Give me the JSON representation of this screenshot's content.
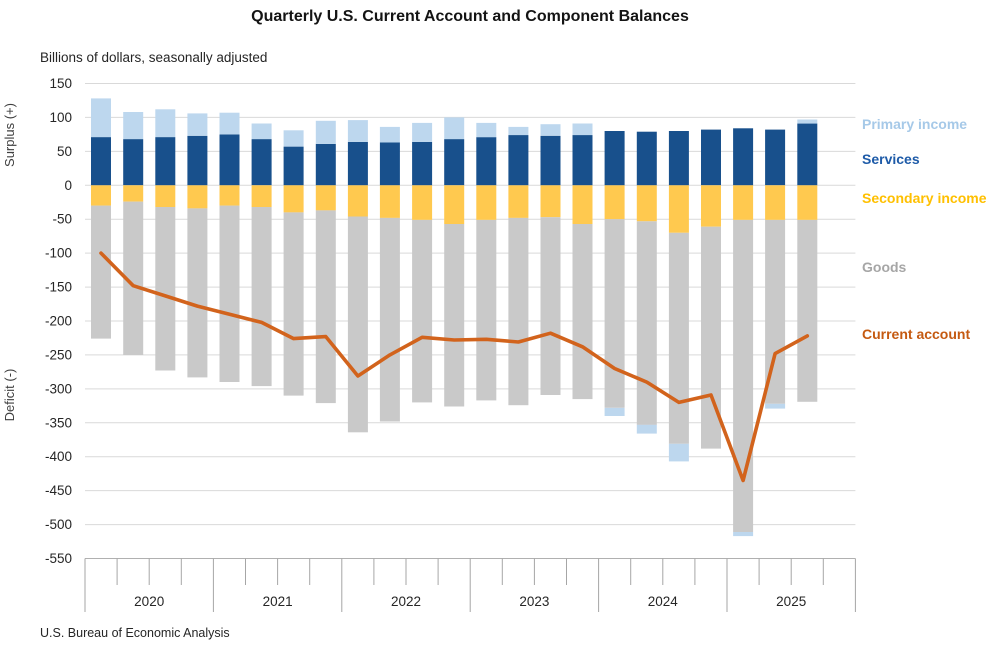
{
  "header": {
    "title": "Quarterly U.S. Current Account and Component Balances",
    "subtitle": "Billions of dollars, seasonally adjusted",
    "source": "U.S. Bureau of Economic Analysis"
  },
  "legend": [
    {
      "label": "Primary income",
      "color": "#A6C9E8",
      "y": 124
    },
    {
      "label": "Services",
      "color": "#1E5BA8",
      "y": 159
    },
    {
      "label": "Secondary income",
      "color": "#FFC000",
      "y": 198
    },
    {
      "label": "Goods",
      "color": "#A6A6A6",
      "y": 267
    },
    {
      "label": "Current account",
      "color": "#C55A11",
      "y": 334
    }
  ],
  "chart_data": {
    "type": "bar",
    "subtype": "stacked-bars-with-line",
    "title": "Quarterly U.S. Current Account and Component Balances",
    "ylabel_units": "Billions of dollars, seasonally adjusted",
    "y_axis": {
      "max": 150,
      "min": -550,
      "step": 50,
      "surplus_label": "Surplus (+)",
      "deficit_label": "Deficit (-)",
      "grid": true
    },
    "x_axis": {
      "years": [
        "2020",
        "2021",
        "2022",
        "2023",
        "2024",
        "2025"
      ],
      "quarters_per_year": 4,
      "n_points": 23
    },
    "quarters": [
      "2020 Q1",
      "2020 Q2",
      "2020 Q3",
      "2020 Q4",
      "2021 Q1",
      "2021 Q2",
      "2021 Q3",
      "2021 Q4",
      "2022 Q1",
      "2022 Q2",
      "2022 Q3",
      "2022 Q4",
      "2023 Q1",
      "2023 Q2",
      "2023 Q3",
      "2023 Q4",
      "2024 Q1",
      "2024 Q2",
      "2024 Q3",
      "2024 Q4",
      "2025 Q1",
      "2025 Q2",
      "2025 Q3"
    ],
    "series": {
      "services": {
        "name": "Services",
        "color": "#18508C",
        "role": "bar",
        "values": [
          71,
          68,
          71,
          73,
          75,
          68,
          57,
          61,
          64,
          63,
          64,
          68,
          71,
          74,
          73,
          74,
          80,
          79,
          80,
          82,
          84,
          82,
          91
        ]
      },
      "primary_income": {
        "name": "Primary income",
        "color": "#BDD7EE",
        "role": "bar",
        "values": [
          57,
          40,
          41,
          33,
          32,
          23,
          24,
          34,
          32,
          23,
          28,
          32,
          21,
          12,
          17,
          17,
          -12,
          -13,
          -26,
          0,
          -6,
          -7,
          6
        ]
      },
      "secondary_income": {
        "name": "Secondary income",
        "color": "#FFC94F",
        "role": "bar",
        "values": [
          -30,
          -24,
          -32,
          -34,
          -30,
          -32,
          -40,
          -37,
          -46,
          -48,
          -51,
          -57,
          -51,
          -48,
          -47,
          -57,
          -50,
          -53,
          -70,
          -61,
          -51,
          -51,
          -51
        ]
      },
      "goods": {
        "name": "Goods",
        "color": "#C9C9C9",
        "role": "bar",
        "values": [
          -196,
          -226,
          -241,
          -249,
          -260,
          -264,
          -270,
          -284,
          -318,
          -300,
          -269,
          -269,
          -266,
          -276,
          -262,
          -258,
          -278,
          -300,
          -311,
          -327,
          -460,
          -271,
          -268
        ]
      },
      "current_account": {
        "name": "Current account",
        "color": "#D2631C",
        "role": "line",
        "values": [
          -100,
          -148,
          -163,
          -178,
          -190,
          -202,
          -226,
          -223,
          -281,
          -250,
          -224,
          -228,
          -227,
          -231,
          -218,
          -238,
          -270,
          -290,
          -320,
          -309,
          -435,
          -248,
          -222
        ]
      }
    },
    "stack_order_positive": [
      "services",
      "primary_income"
    ],
    "stack_order_negative": [
      "secondary_income",
      "goods",
      "primary_income"
    ]
  }
}
